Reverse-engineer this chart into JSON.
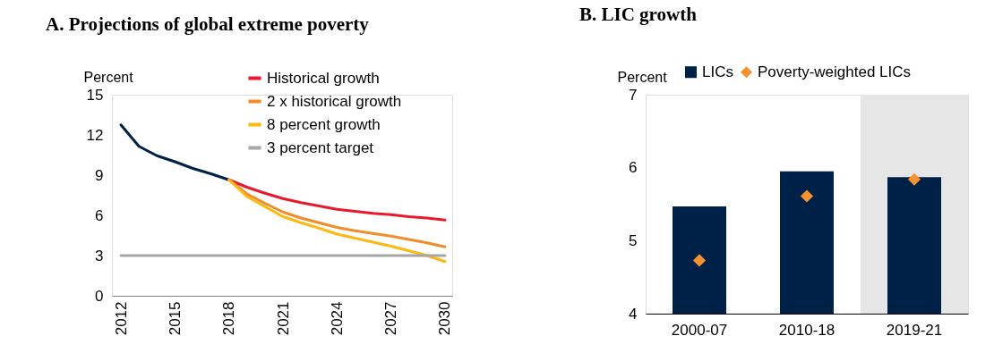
{
  "chart_data": [
    {
      "type": "line",
      "title": "A. Projections of global extreme poverty",
      "ylabel": "Percent",
      "xlim": [
        2011.5,
        2030.4
      ],
      "xticks": [
        2012,
        2015,
        2018,
        2021,
        2024,
        2027,
        2030
      ],
      "ylim": [
        0,
        15
      ],
      "yticks": [
        0,
        3,
        6,
        9,
        12,
        15
      ],
      "legend": "top right",
      "marker": "none",
      "line_style": "solid",
      "grid": false,
      "series": [
        {
          "color": "#002147",
          "x": [
            2012,
            2013,
            2014,
            2015,
            2016,
            2017,
            2018
          ],
          "values": [
            12.75,
            11.15,
            10.45,
            10.0,
            9.5,
            9.1,
            8.65
          ]
        },
        {
          "name": "Historical growth",
          "color": "#e8192c",
          "x": [
            2018,
            2019,
            2020,
            2021,
            2022,
            2023,
            2024,
            2025,
            2026,
            2027,
            2028,
            2029,
            2030
          ],
          "values": [
            8.65,
            8.1,
            7.65,
            7.25,
            6.95,
            6.7,
            6.45,
            6.3,
            6.15,
            6.05,
            5.9,
            5.8,
            5.65
          ]
        },
        {
          "name": "2 x historical growth",
          "color": "#f28c28",
          "x": [
            2018,
            2019,
            2020,
            2021,
            2022,
            2023,
            2024,
            2025,
            2026,
            2027,
            2028,
            2029,
            2030
          ],
          "values": [
            8.65,
            7.6,
            6.9,
            6.25,
            5.8,
            5.45,
            5.1,
            4.85,
            4.65,
            4.45,
            4.2,
            3.95,
            3.65
          ]
        },
        {
          "name": "8 percent growth",
          "color": "#fdb813",
          "x": [
            2018,
            2019,
            2020,
            2021,
            2022,
            2023,
            2024,
            2025,
            2026,
            2027,
            2028,
            2029,
            2030
          ],
          "values": [
            8.65,
            7.4,
            6.65,
            5.9,
            5.45,
            5.05,
            4.6,
            4.3,
            4.0,
            3.7,
            3.35,
            3.0,
            2.55
          ]
        },
        {
          "name": "3 percent target",
          "color": "#a6a6a6",
          "x": [
            2012,
            2030
          ],
          "values": [
            3,
            3
          ]
        }
      ]
    },
    {
      "type": "bar",
      "title": "B. LIC growth",
      "ylabel": "Percent",
      "categories": [
        "2000-07",
        "2010-18",
        "2019-21"
      ],
      "ylim": [
        4,
        7
      ],
      "yticks": [
        4,
        5,
        6,
        7
      ],
      "legend": "top",
      "grid": false,
      "bands": [
        {
          "axis": "x",
          "from": "2019-21",
          "to": "2019-21",
          "color": "#e6e6e6"
        }
      ],
      "series": [
        {
          "name": "LICs",
          "color": "#002147",
          "values": [
            5.47,
            5.95,
            5.87
          ]
        },
        {
          "name": "Poverty-weighted LICs",
          "type": "scatter",
          "marker": "diamond",
          "color": "#f5912e",
          "values": [
            4.73,
            5.61,
            5.84
          ]
        }
      ]
    }
  ]
}
